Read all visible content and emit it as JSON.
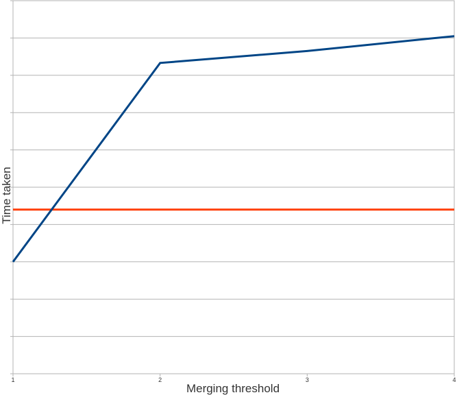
{
  "chart_data": {
    "type": "line",
    "title": "",
    "xlabel": "Merging threshold",
    "ylabel": "Time taken",
    "x": [
      1,
      2,
      3,
      4
    ],
    "xticks": [
      "1",
      "2",
      "3",
      "4"
    ],
    "xlim": [
      1,
      4
    ],
    "ylim": [
      0,
      10
    ],
    "y_tick_labels_shown": false,
    "grid": "horizontal",
    "legend": "none",
    "series": [
      {
        "color": "#004586",
        "values": [
          3.0,
          8.33,
          8.65,
          9.05
        ]
      },
      {
        "color": "#ff420e",
        "values": [
          4.4,
          4.4,
          4.4,
          4.4
        ]
      }
    ]
  }
}
